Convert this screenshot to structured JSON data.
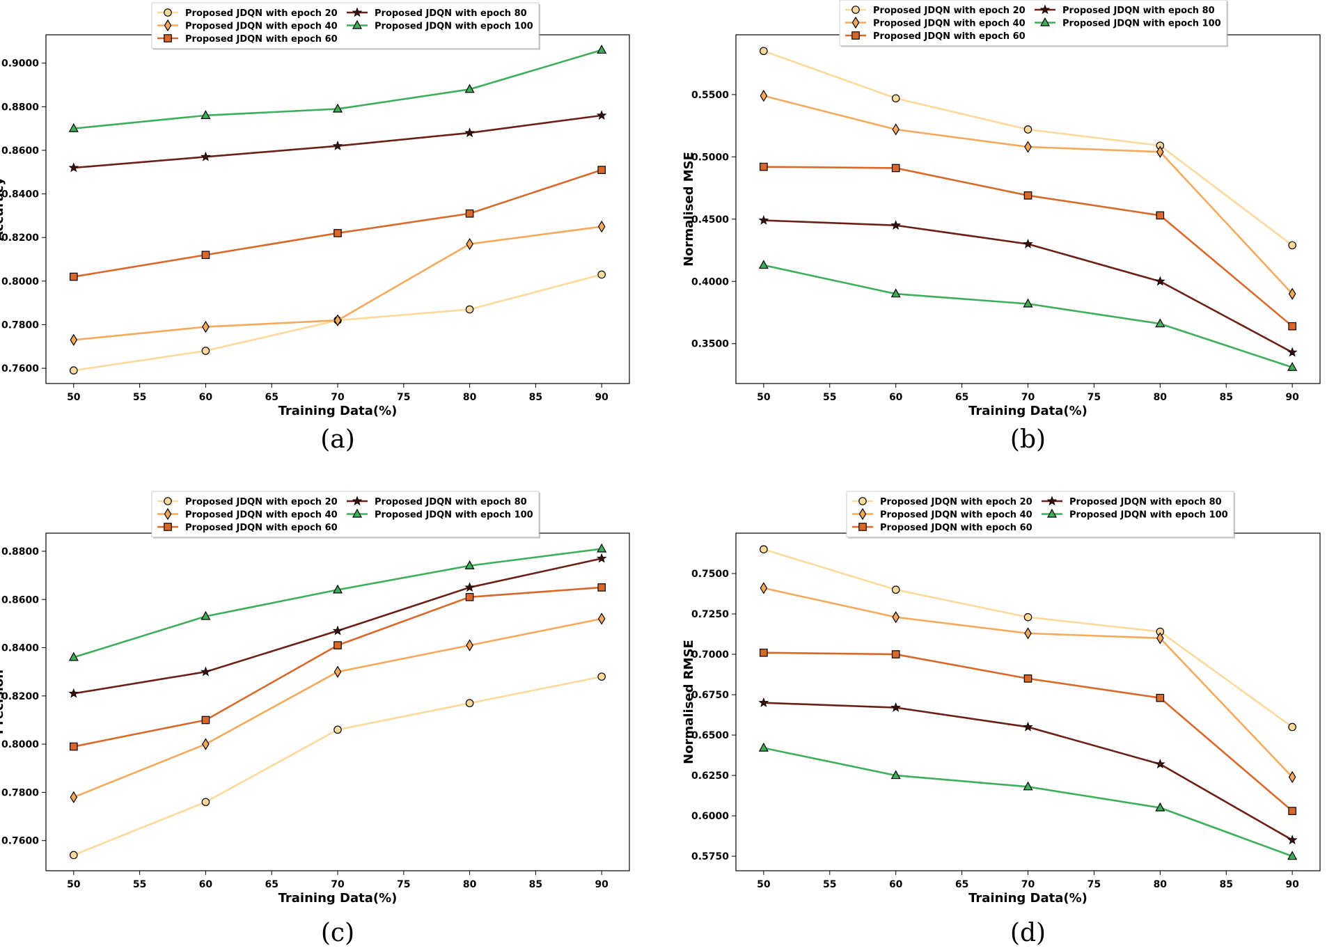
{
  "colors": {
    "epoch20": "#fdd99b",
    "epoch40": "#f6a95b",
    "epoch60": "#d9692a",
    "epoch80": "#6b1f15",
    "epoch100": "#3daf5b",
    "axes": "#000000"
  },
  "chart_data": [
    {
      "type": "line",
      "panel_label": "(a)",
      "xlabel": "Training Data(%)",
      "ylabel": "Accuracy",
      "x": [
        50,
        60,
        70,
        80,
        90
      ],
      "xticks": [
        50,
        55,
        60,
        65,
        70,
        75,
        80,
        85,
        90
      ],
      "xlim": [
        47.9,
        92.1
      ],
      "yticks": [
        0.76,
        0.78,
        0.8,
        0.82,
        0.84,
        0.86,
        0.88,
        0.9
      ],
      "ylim": [
        0.753,
        0.913
      ],
      "legend": "top-left, above plot area, 2 columns",
      "series": [
        {
          "name": "Proposed JDQN with epoch 20",
          "color": "epoch20",
          "marker": "circle",
          "values": [
            0.759,
            0.768,
            0.782,
            0.787,
            0.803
          ]
        },
        {
          "name": "Proposed JDQN with epoch 40",
          "color": "epoch40",
          "marker": "diamond",
          "values": [
            0.773,
            0.779,
            0.782,
            0.817,
            0.825
          ]
        },
        {
          "name": "Proposed JDQN with epoch 60",
          "color": "epoch60",
          "marker": "square",
          "values": [
            0.802,
            0.812,
            0.822,
            0.831,
            0.851
          ]
        },
        {
          "name": "Proposed JDQN with epoch 80",
          "color": "epoch80",
          "marker": "star",
          "values": [
            0.852,
            0.857,
            0.862,
            0.868,
            0.876
          ]
        },
        {
          "name": "Proposed JDQN with epoch 100",
          "color": "epoch100",
          "marker": "triangle",
          "values": [
            0.87,
            0.876,
            0.879,
            0.888,
            0.906
          ]
        }
      ]
    },
    {
      "type": "line",
      "panel_label": "(b)",
      "xlabel": "Training Data(%)",
      "ylabel": "Normalised MSE",
      "x": [
        50,
        60,
        70,
        80,
        90
      ],
      "xticks": [
        50,
        55,
        60,
        65,
        70,
        75,
        80,
        85,
        90
      ],
      "xlim": [
        47.9,
        92.1
      ],
      "yticks": [
        0.35,
        0.4,
        0.45,
        0.5,
        0.55
      ],
      "ylim": [
        0.318,
        0.598
      ],
      "legend": "top-left, above plot area, 2 columns",
      "series": [
        {
          "name": "Proposed JDQN with epoch 20",
          "color": "epoch20",
          "marker": "circle",
          "values": [
            0.585,
            0.547,
            0.522,
            0.509,
            0.429
          ]
        },
        {
          "name": "Proposed JDQN with epoch 40",
          "color": "epoch40",
          "marker": "diamond",
          "values": [
            0.549,
            0.522,
            0.508,
            0.504,
            0.39
          ]
        },
        {
          "name": "Proposed JDQN with epoch 60",
          "color": "epoch60",
          "marker": "square",
          "values": [
            0.492,
            0.491,
            0.469,
            0.453,
            0.364
          ]
        },
        {
          "name": "Proposed JDQN with epoch 80",
          "color": "epoch80",
          "marker": "star",
          "values": [
            0.449,
            0.445,
            0.43,
            0.4,
            0.343
          ]
        },
        {
          "name": "Proposed JDQN with epoch 100",
          "color": "epoch100",
          "marker": "triangle",
          "values": [
            0.413,
            0.39,
            0.382,
            0.366,
            0.331
          ]
        }
      ]
    },
    {
      "type": "line",
      "panel_label": "(c)",
      "xlabel": "Training Data(%)",
      "ylabel": "Precision",
      "x": [
        50,
        60,
        70,
        80,
        90
      ],
      "xticks": [
        50,
        55,
        60,
        65,
        70,
        75,
        80,
        85,
        90
      ],
      "xlim": [
        47.9,
        92.1
      ],
      "yticks": [
        0.76,
        0.78,
        0.8,
        0.82,
        0.84,
        0.86,
        0.88
      ],
      "ylim": [
        0.7475,
        0.8875
      ],
      "legend": "top-left, above plot area, 2 columns",
      "series": [
        {
          "name": "Proposed JDQN with epoch 20",
          "color": "epoch20",
          "marker": "circle",
          "values": [
            0.754,
            0.776,
            0.806,
            0.817,
            0.828
          ]
        },
        {
          "name": "Proposed JDQN with epoch 40",
          "color": "epoch40",
          "marker": "diamond",
          "values": [
            0.778,
            0.8,
            0.83,
            0.841,
            0.852
          ]
        },
        {
          "name": "Proposed JDQN with epoch 60",
          "color": "epoch60",
          "marker": "square",
          "values": [
            0.799,
            0.81,
            0.841,
            0.861,
            0.865
          ]
        },
        {
          "name": "Proposed JDQN with epoch 80",
          "color": "epoch80",
          "marker": "star",
          "values": [
            0.821,
            0.83,
            0.847,
            0.865,
            0.877
          ]
        },
        {
          "name": "Proposed JDQN with epoch 100",
          "color": "epoch100",
          "marker": "triangle",
          "values": [
            0.836,
            0.853,
            0.864,
            0.874,
            0.881
          ]
        }
      ]
    },
    {
      "type": "line",
      "panel_label": "(d)",
      "xlabel": "Training Data(%)",
      "ylabel": "Normalised RMSE",
      "x": [
        50,
        60,
        70,
        80,
        90
      ],
      "xticks": [
        50,
        55,
        60,
        65,
        70,
        75,
        80,
        85,
        90
      ],
      "xlim": [
        47.9,
        92.1
      ],
      "yticks": [
        0.575,
        0.6,
        0.625,
        0.65,
        0.675,
        0.7,
        0.725,
        0.75
      ],
      "ylim": [
        0.566,
        0.775
      ],
      "legend": "top-left, above plot area, 2 columns",
      "series": [
        {
          "name": "Proposed JDQN with epoch 20",
          "color": "epoch20",
          "marker": "circle",
          "values": [
            0.765,
            0.74,
            0.723,
            0.714,
            0.655
          ]
        },
        {
          "name": "Proposed JDQN with epoch 40",
          "color": "epoch40",
          "marker": "diamond",
          "values": [
            0.741,
            0.723,
            0.713,
            0.71,
            0.624
          ]
        },
        {
          "name": "Proposed JDQN with epoch 60",
          "color": "epoch60",
          "marker": "square",
          "values": [
            0.701,
            0.7,
            0.685,
            0.673,
            0.603
          ]
        },
        {
          "name": "Proposed JDQN with epoch 80",
          "color": "epoch80",
          "marker": "star",
          "values": [
            0.67,
            0.667,
            0.655,
            0.632,
            0.585
          ]
        },
        {
          "name": "Proposed JDQN with epoch 100",
          "color": "epoch100",
          "marker": "triangle",
          "values": [
            0.642,
            0.625,
            0.618,
            0.605,
            0.575
          ]
        }
      ]
    }
  ]
}
